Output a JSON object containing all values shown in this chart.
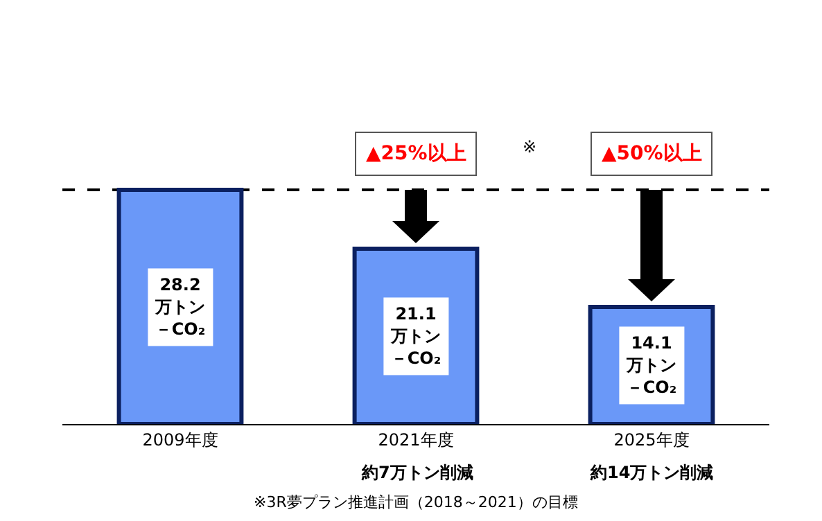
{
  "chart_data": {
    "type": "bar",
    "categories": [
      "2009年度",
      "2021年度",
      "2025年度"
    ],
    "values": [
      28.2,
      21.1,
      14.1
    ],
    "value_labels": [
      "28.2万トン－CO₂",
      "21.1万トン－CO₂",
      "14.1万トン－CO₂"
    ],
    "color": "#6a98f8",
    "tick_labels": "x",
    "grid": false,
    "legend": false,
    "ref_lines": [
      {
        "axis": "y",
        "value": 28.2,
        "color": "#000000",
        "line_style": "dashed"
      }
    ],
    "annotations": [
      "▲25%以上",
      "※",
      "▲50%以上",
      "約7万トン削減",
      "約14万トン削減",
      "※3R夢プラン推進計画（2018～2021）の目標"
    ]
  }
}
